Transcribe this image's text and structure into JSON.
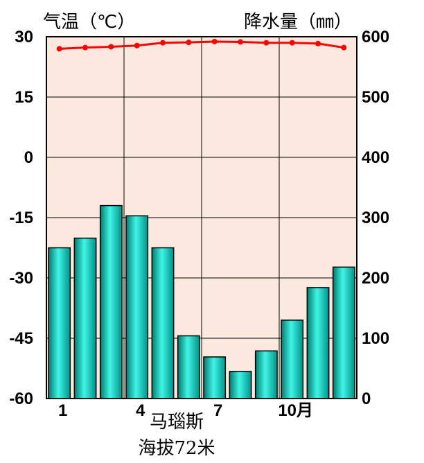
{
  "chart_data": {
    "type": "bar+line",
    "left_axis": {
      "label": "气温（℃）",
      "ylim": [
        -60,
        30
      ],
      "ticks": [
        "30",
        "15",
        "0",
        "-15",
        "-30",
        "-45",
        "-60"
      ]
    },
    "right_axis": {
      "label": "降水量（㎜）",
      "ylim": [
        0,
        600
      ],
      "ticks": [
        "600",
        "500",
        "400",
        "300",
        "200",
        "100",
        "0"
      ]
    },
    "x_tick_labels": [
      "1",
      "4",
      "7",
      "10月"
    ],
    "x_tick_months": [
      1,
      4,
      7,
      10
    ],
    "months": [
      1,
      2,
      3,
      4,
      5,
      6,
      7,
      8,
      9,
      10,
      11,
      12
    ],
    "precipitation": [
      250,
      266,
      320,
      303,
      250,
      104,
      69,
      45,
      79,
      130,
      184,
      218
    ],
    "temperature": [
      27.0,
      27.3,
      27.5,
      27.8,
      28.5,
      28.6,
      28.8,
      28.7,
      28.5,
      28.5,
      28.3,
      27.3
    ],
    "bar_color": "#00d2c2",
    "line_color": "#ff0000",
    "plot_background": "#fbe9df",
    "grid": true
  },
  "station": {
    "name": "马瑙斯",
    "elevation": "海拔72米"
  }
}
